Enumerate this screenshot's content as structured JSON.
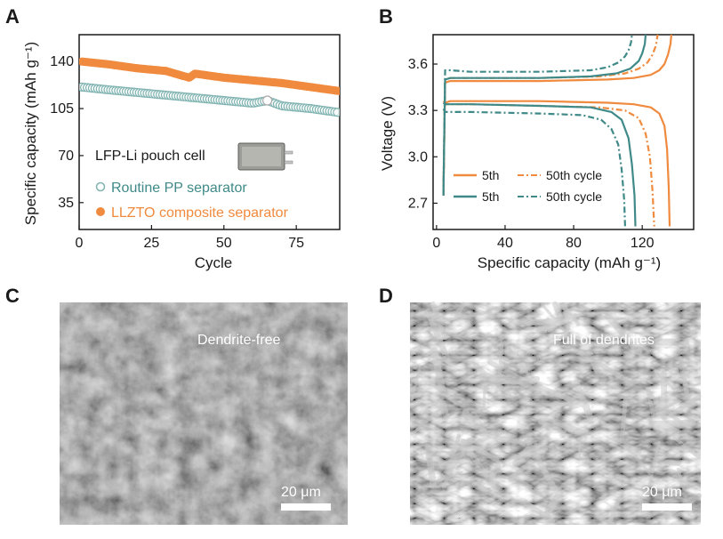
{
  "colors": {
    "orange": "#f08a3e",
    "teal": "#3f8a88",
    "teal_light": "#7fb3b0",
    "axis": "#1a1a1a"
  },
  "panels": {
    "a": "A",
    "b": "B",
    "c": "C",
    "d": "D"
  },
  "chart_data": [
    {
      "id": "A",
      "type": "scatter",
      "title": "",
      "xlabel": "Cycle",
      "ylabel": "Specific capacity (mAh g⁻¹)",
      "xlim": [
        0,
        90
      ],
      "ylim": [
        15,
        160
      ],
      "xticks": [
        0,
        25,
        50,
        75
      ],
      "yticks": [
        35,
        70,
        105,
        140
      ],
      "inset_label": "LFP-Li pouch cell",
      "inset_icon": "pouch-cell-photo",
      "series": [
        {
          "name": "Routine PP separator",
          "marker": "open-circle",
          "color": "#7fb3b0",
          "x": [
            1,
            10,
            20,
            30,
            40,
            50,
            60,
            65,
            70,
            80,
            90
          ],
          "y": [
            121,
            119,
            117,
            115,
            113,
            111,
            109,
            111,
            107,
            105,
            102
          ]
        },
        {
          "name": "LLZTO composite separator",
          "marker": "filled-circle",
          "color": "#f08a3e",
          "x": [
            1,
            10,
            20,
            30,
            38,
            40,
            50,
            60,
            70,
            80,
            90
          ],
          "y": [
            140,
            138,
            135,
            133,
            128,
            131,
            128,
            126,
            124,
            121,
            118
          ]
        }
      ]
    },
    {
      "id": "B",
      "type": "line",
      "title": "",
      "xlabel": "Specific capacity (mAh g⁻¹)",
      "ylabel": "Voltage (V)",
      "xlim": [
        -2,
        150
      ],
      "ylim": [
        2.53,
        3.79
      ],
      "xticks": [
        0,
        40,
        80,
        120
      ],
      "yticks": [
        2.7,
        3.0,
        3.3,
        3.6
      ],
      "ytick_labels": [
        "2.7",
        "3.0",
        "3.3",
        "3.6"
      ],
      "legend": [
        {
          "label": "5th",
          "color": "#f08a3e",
          "dash": "solid"
        },
        {
          "label": "50th cycle",
          "color": "#f08a3e",
          "dash": "dashdot"
        },
        {
          "label": "5th",
          "color": "#3f8a88",
          "dash": "solid"
        },
        {
          "label": "50th cycle",
          "color": "#3f8a88",
          "dash": "dashdot"
        }
      ],
      "series": [
        {
          "name": "LLZTO 5th",
          "color": "#f08a3e",
          "dash": "solid",
          "charge": {
            "x": [
              4,
              5,
              8,
              20,
              60,
              100,
              115,
              125,
              130,
              133,
              135,
              136.5,
              137
            ],
            "y": [
              2.75,
              3.48,
              3.49,
              3.49,
              3.49,
              3.5,
              3.51,
              3.53,
              3.56,
              3.6,
              3.66,
              3.73,
              3.79
            ]
          },
          "discharge": {
            "x": [
              4,
              5,
              8,
              20,
              60,
              100,
              115,
              125,
              130,
              133,
              134.5,
              135.5,
              136
            ],
            "y": [
              3.36,
              3.35,
              3.36,
              3.36,
              3.36,
              3.35,
              3.34,
              3.32,
              3.28,
              3.2,
              3.05,
              2.8,
              2.55
            ]
          }
        },
        {
          "name": "LLZTO 50th cycle",
          "color": "#f08a3e",
          "dash": "dashdot",
          "charge": {
            "x": [
              4,
              5,
              8,
              20,
              60,
              95,
              110,
              118,
              123,
              126,
              128,
              129
            ],
            "y": [
              2.75,
              3.5,
              3.51,
              3.51,
              3.51,
              3.52,
              3.54,
              3.57,
              3.61,
              3.66,
              3.72,
              3.79
            ]
          },
          "discharge": {
            "x": [
              4,
              5,
              8,
              20,
              60,
              95,
              110,
              118,
              122,
              124.5,
              126,
              127
            ],
            "y": [
              3.35,
              3.34,
              3.34,
              3.34,
              3.33,
              3.32,
              3.3,
              3.25,
              3.15,
              3.0,
              2.78,
              2.55
            ]
          }
        },
        {
          "name": "PP 5th",
          "color": "#3f8a88",
          "dash": "solid",
          "charge": {
            "x": [
              4,
              5,
              8,
              20,
              60,
              90,
              105,
              113,
              118,
              120,
              121.5,
              122
            ],
            "y": [
              2.75,
              3.5,
              3.51,
              3.51,
              3.51,
              3.52,
              3.54,
              3.57,
              3.62,
              3.67,
              3.73,
              3.79
            ]
          },
          "discharge": {
            "x": [
              4,
              5,
              8,
              20,
              60,
              90,
              102,
              108,
              112,
              114,
              115.5,
              116
            ],
            "y": [
              3.35,
              3.34,
              3.34,
              3.34,
              3.33,
              3.32,
              3.29,
              3.24,
              3.12,
              2.95,
              2.75,
              2.55
            ]
          }
        },
        {
          "name": "PP 50th cycle",
          "color": "#3f8a88",
          "dash": "dashdot",
          "charge": {
            "x": [
              4,
              5,
              8,
              20,
              60,
              90,
              100,
              106,
              110,
              112,
              113.5,
              114
            ],
            "y": [
              2.75,
              3.56,
              3.56,
              3.55,
              3.55,
              3.56,
              3.58,
              3.61,
              3.65,
              3.69,
              3.74,
              3.79
            ]
          },
          "discharge": {
            "x": [
              4,
              5,
              8,
              20,
              60,
              85,
              96,
              102,
              106,
              108,
              109.5,
              110
            ],
            "y": [
              3.31,
              3.29,
              3.29,
              3.29,
              3.28,
              3.27,
              3.24,
              3.18,
              3.08,
              2.92,
              2.72,
              2.55
            ]
          }
        }
      ]
    }
  ],
  "sem": {
    "c": {
      "label": "Dendrite-free",
      "scale": "20 μm"
    },
    "d": {
      "label": "Full of dendrites",
      "scale": "20 μm"
    }
  }
}
